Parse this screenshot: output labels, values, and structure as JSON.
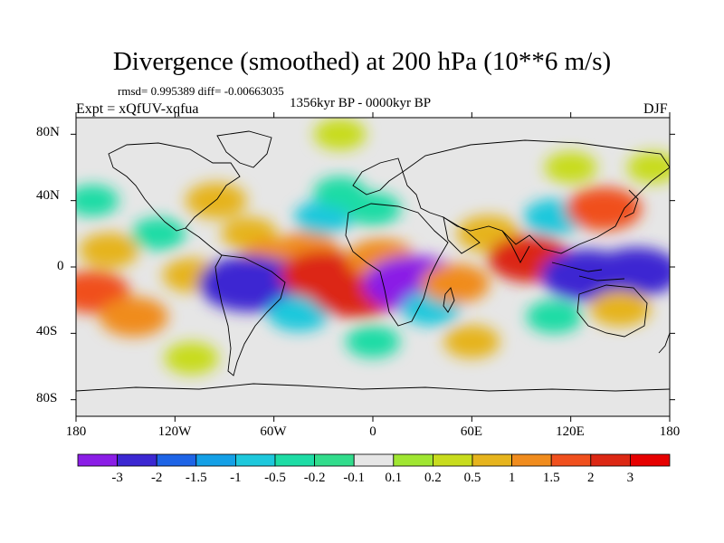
{
  "title": "Divergence (smoothed) at 200 hPa (10**6 m/s)",
  "stats": "rmsd= 0.995389 diff= -0.00663035",
  "period": "1356kyr BP - 0000kyr BP",
  "experiment": "Expt = xQfUV-xqfua",
  "season": "DJF",
  "axes": {
    "y_ticks": [
      "80N",
      "40N",
      "0",
      "40S",
      "80S"
    ],
    "x_ticks": [
      "180",
      "120W",
      "60W",
      "0",
      "60E",
      "120E",
      "180"
    ]
  },
  "colorbar": {
    "labels": [
      "-3",
      "-2",
      "-1.5",
      "-1",
      "-0.5",
      "-0.2",
      "-0.1",
      "0.1",
      "0.2",
      "0.5",
      "1",
      "1.5",
      "2",
      "3"
    ],
    "colors": [
      "#8b1ee6",
      "#3c28d2",
      "#1e64e6",
      "#14a0e6",
      "#1ec8dc",
      "#1edca5",
      "#32dc8c",
      "#e6e6e6",
      "#a0e632",
      "#c8dc1e",
      "#e6b41e",
      "#f08c1e",
      "#f0501e",
      "#dc2814",
      "#e60000"
    ]
  },
  "map_blobs": [
    {
      "lon": -20,
      "lat": 80,
      "value": 0.3
    },
    {
      "lon": 170,
      "lat": 60,
      "value": 0.3
    },
    {
      "lon": -170,
      "lat": 40,
      "value": -0.3
    },
    {
      "lon": -160,
      "lat": 10,
      "value": 0.7
    },
    {
      "lon": -130,
      "lat": 20,
      "value": -0.4
    },
    {
      "lon": -110,
      "lat": -5,
      "value": 0.6
    },
    {
      "lon": -170,
      "lat": -15,
      "value": 1.5
    },
    {
      "lon": -145,
      "lat": -30,
      "value": 1.2
    },
    {
      "lon": -95,
      "lat": 40,
      "value": 0.8
    },
    {
      "lon": -75,
      "lat": 20,
      "value": 0.5
    },
    {
      "lon": -60,
      "lat": 5,
      "value": 1.1
    },
    {
      "lon": -40,
      "lat": 10,
      "value": 1.0
    },
    {
      "lon": -30,
      "lat": 30,
      "value": -0.6
    },
    {
      "lon": -20,
      "lat": 45,
      "value": -0.3
    },
    {
      "lon": 0,
      "lat": 35,
      "value": -0.5
    },
    {
      "lon": -75,
      "lat": -10,
      "value": -3.0
    },
    {
      "lon": -52,
      "lat": -12,
      "value": -2.8
    },
    {
      "lon": -45,
      "lat": -28,
      "value": -0.8
    },
    {
      "lon": -30,
      "lat": -5,
      "value": 2.2
    },
    {
      "lon": -10,
      "lat": -15,
      "value": 2.5
    },
    {
      "lon": 5,
      "lat": 5,
      "value": 1.2
    },
    {
      "lon": 25,
      "lat": -10,
      "value": -3.2
    },
    {
      "lon": 35,
      "lat": -25,
      "value": -0.6
    },
    {
      "lon": 50,
      "lat": -10,
      "value": 1.2
    },
    {
      "lon": 70,
      "lat": 20,
      "value": 0.9
    },
    {
      "lon": 95,
      "lat": 5,
      "value": 2.0
    },
    {
      "lon": 110,
      "lat": 30,
      "value": -0.8
    },
    {
      "lon": 140,
      "lat": 35,
      "value": 1.6
    },
    {
      "lon": 130,
      "lat": -5,
      "value": -2.5
    },
    {
      "lon": 160,
      "lat": -3,
      "value": -2.2
    },
    {
      "lon": 110,
      "lat": -30,
      "value": -0.5
    },
    {
      "lon": 150,
      "lat": -25,
      "value": 0.8
    },
    {
      "lon": 0,
      "lat": -45,
      "value": -0.4
    },
    {
      "lon": 60,
      "lat": -45,
      "value": 0.5
    },
    {
      "lon": -110,
      "lat": -55,
      "value": 0.4
    },
    {
      "lon": 120,
      "lat": 60,
      "value": 0.3
    }
  ]
}
